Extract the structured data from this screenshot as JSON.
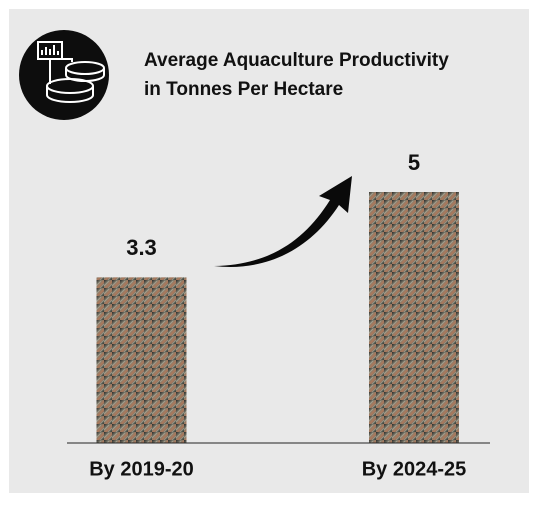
{
  "chart_data": {
    "type": "bar",
    "title": "Average Aquaculture Productivity",
    "subtitle": "in Tonnes Per Hectare",
    "categories": [
      "By 2019-20",
      "By 2024-25"
    ],
    "values": [
      3.3,
      5
    ],
    "ylim": [
      0,
      5
    ]
  }
}
